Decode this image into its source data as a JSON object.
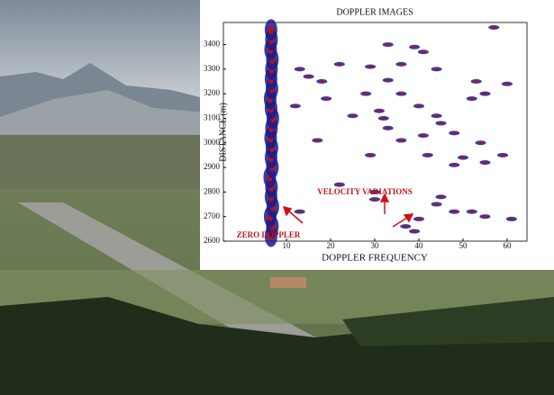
{
  "chart_data": {
    "type": "scatter",
    "title": "DOPPLER IMAGES",
    "x_label": "DOPPLER FREQUENCY",
    "y_label": "DISTANCE (m)",
    "xlim": [
      -4.3,
      64.5
    ],
    "xticks": [
      10,
      20,
      30,
      40,
      50,
      60
    ],
    "ylim": [
      2600,
      3490
    ],
    "yticks": [
      2600,
      2700,
      2800,
      2900,
      3000,
      3100,
      3200,
      3300,
      3400
    ],
    "annotations": [
      "VELOCITY VARIATIONS",
      "ZERO DOPPLER"
    ],
    "series": [
      {
        "color": "#1a1a8c",
        "x": [
          6.5,
          6.8,
          6.3,
          6.9,
          6.5,
          6.6,
          6.2,
          6.8,
          6.5,
          6.7,
          6.4,
          6.6,
          6.9,
          6.5,
          6.3,
          6.7,
          6.5,
          6.6,
          6.8,
          6.4,
          6.6,
          6.5
        ],
        "values": [
          2620,
          2660,
          2700,
          2740,
          2780,
          2820,
          2860,
          2900,
          2940,
          2980,
          3020,
          3060,
          3100,
          3140,
          3180,
          3220,
          3260,
          3300,
          3340,
          3380,
          3420,
          3460
        ]
      },
      {
        "color": "#1a1a8c",
        "x": [
          57,
          33,
          39,
          41,
          36,
          22,
          29,
          13,
          44,
          15,
          33,
          18,
          60,
          53,
          28,
          36,
          19,
          52,
          55,
          12,
          40,
          31,
          44,
          25,
          32,
          45,
          33,
          48,
          17,
          36,
          41,
          54,
          29,
          42,
          50,
          55,
          59,
          48,
          30,
          45,
          44,
          48,
          52,
          55,
          61,
          40,
          13,
          39,
          37,
          22,
          30
        ],
        "values": [
          3470,
          3400,
          3390,
          3370,
          3320,
          3320,
          3310,
          3300,
          3300,
          3270,
          3255,
          3250,
          3240,
          3250,
          3200,
          3200,
          3180,
          3180,
          3200,
          3150,
          3150,
          3130,
          3110,
          3110,
          3100,
          3080,
          3060,
          3040,
          3010,
          3010,
          3030,
          3000,
          2950,
          2950,
          2940,
          2920,
          2950,
          2910,
          2770,
          2780,
          2750,
          2720,
          2720,
          2700,
          2690,
          2690,
          2720,
          2640,
          2660,
          2830,
          2800
        ]
      }
    ]
  }
}
